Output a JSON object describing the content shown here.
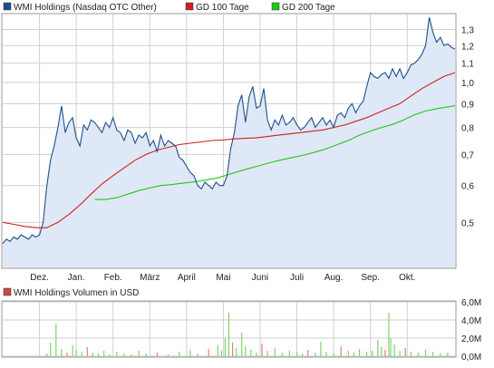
{
  "colors": {
    "price": "#1f4f8b",
    "price_fill": "#dfe8f6",
    "gd100": "#d11f1f",
    "gd200": "#22c71a",
    "volume_legend": "#c84a4a",
    "volume_bar": "#7fd46b",
    "volume_bar_neg": "#e08080",
    "grid": "#d0d0d0",
    "frame": "#999999"
  },
  "chart_data": [
    {
      "type": "line",
      "legend": [
        {
          "key": "price",
          "label": "WMI Holdings (Nasdaq OTC Other)"
        },
        {
          "key": "gd100",
          "label": "GD 100 Tage"
        },
        {
          "key": "gd200",
          "label": "GD 200 Tage"
        }
      ],
      "x_tick_labels": [
        "Dez.",
        "Jan.",
        "Feb.",
        "März",
        "April",
        "Mai",
        "Juni",
        "Juli",
        "Aug.",
        "Sep.",
        "Okt."
      ],
      "x_range": [
        0,
        12.3
      ],
      "x_ticks": [
        1,
        2,
        3,
        4,
        5,
        6,
        7,
        8,
        9,
        10,
        11
      ],
      "y_ticks": [
        0.5,
        0.6,
        0.7,
        0.8,
        0.9,
        1.0,
        1.1,
        1.2,
        1.3
      ],
      "y_tick_labels": [
        "0,5",
        "0,6",
        "0,7",
        "0,8",
        "0,9",
        "1,0",
        "1,1",
        "1,2",
        "1,3"
      ],
      "y_scale": "log",
      "ylim": [
        0.4,
        1.4
      ],
      "grid": true,
      "legend_placement": "top-left",
      "series": [
        {
          "name": "WMI Holdings (Nasdaq OTC Other)",
          "key": "price",
          "x": [
            0,
            0.1,
            0.2,
            0.3,
            0.4,
            0.5,
            0.6,
            0.7,
            0.8,
            0.9,
            1.0,
            1.1,
            1.2,
            1.3,
            1.4,
            1.5,
            1.6,
            1.7,
            1.8,
            1.9,
            2.0,
            2.1,
            2.2,
            2.3,
            2.4,
            2.5,
            2.6,
            2.7,
            2.8,
            2.9,
            3.0,
            3.1,
            3.2,
            3.3,
            3.4,
            3.5,
            3.6,
            3.7,
            3.8,
            3.9,
            4.0,
            4.1,
            4.2,
            4.3,
            4.4,
            4.5,
            4.6,
            4.7,
            4.8,
            4.9,
            5.0,
            5.1,
            5.2,
            5.3,
            5.4,
            5.5,
            5.6,
            5.7,
            5.8,
            5.9,
            6.0,
            6.1,
            6.2,
            6.3,
            6.4,
            6.5,
            6.6,
            6.7,
            6.8,
            6.9,
            7.0,
            7.1,
            7.2,
            7.3,
            7.4,
            7.5,
            7.6,
            7.7,
            7.8,
            7.9,
            8.0,
            8.1,
            8.2,
            8.3,
            8.4,
            8.5,
            8.6,
            8.7,
            8.8,
            8.9,
            9.0,
            9.1,
            9.2,
            9.3,
            9.4,
            9.5,
            9.6,
            9.7,
            9.8,
            9.9,
            10.0,
            10.1,
            10.2,
            10.3,
            10.4,
            10.5,
            10.6,
            10.7,
            10.8,
            10.9,
            11.0,
            11.1,
            11.2,
            11.3,
            11.4,
            11.5,
            11.6,
            11.7,
            11.8,
            11.9,
            12.0,
            12.1,
            12.2,
            12.3
          ],
          "values": [
            0.45,
            0.46,
            0.455,
            0.465,
            0.46,
            0.47,
            0.465,
            0.46,
            0.47,
            0.465,
            0.47,
            0.5,
            0.6,
            0.68,
            0.73,
            0.8,
            0.89,
            0.78,
            0.82,
            0.84,
            0.76,
            0.73,
            0.81,
            0.79,
            0.83,
            0.82,
            0.8,
            0.78,
            0.82,
            0.8,
            0.84,
            0.79,
            0.78,
            0.75,
            0.79,
            0.78,
            0.74,
            0.77,
            0.76,
            0.78,
            0.73,
            0.75,
            0.71,
            0.77,
            0.73,
            0.75,
            0.74,
            0.73,
            0.69,
            0.68,
            0.66,
            0.64,
            0.63,
            0.6,
            0.59,
            0.61,
            0.6,
            0.59,
            0.61,
            0.6,
            0.6,
            0.63,
            0.72,
            0.78,
            0.89,
            0.94,
            0.82,
            0.93,
            0.98,
            0.88,
            0.89,
            0.97,
            0.83,
            0.79,
            0.83,
            0.81,
            0.85,
            0.81,
            0.82,
            0.84,
            0.81,
            0.79,
            0.8,
            0.82,
            0.84,
            0.8,
            0.82,
            0.84,
            0.81,
            0.83,
            0.8,
            0.85,
            0.86,
            0.84,
            0.88,
            0.9,
            0.86,
            0.89,
            0.91,
            0.98,
            1.05,
            1.03,
            1.02,
            1.04,
            1.05,
            1.02,
            1.07,
            1.03,
            1.07,
            1.02,
            1.05,
            1.09,
            1.1,
            1.12,
            1.15,
            1.2,
            1.38,
            1.28,
            1.22,
            1.25,
            1.2,
            1.21,
            1.19,
            1.18
          ]
        },
        {
          "name": "GD 100 Tage",
          "key": "gd100",
          "x": [
            0,
            0.3,
            0.6,
            0.9,
            1.2,
            1.5,
            1.8,
            2.1,
            2.4,
            2.7,
            3.0,
            3.3,
            3.6,
            3.9,
            4.2,
            4.5,
            4.8,
            5.1,
            5.4,
            5.7,
            6.0,
            6.3,
            6.6,
            6.9,
            7.2,
            7.5,
            7.8,
            8.1,
            8.4,
            8.7,
            9.0,
            9.3,
            9.6,
            9.9,
            10.2,
            10.5,
            10.8,
            11.1,
            11.4,
            11.7,
            12.0,
            12.3
          ],
          "values": [
            0.5,
            0.495,
            0.49,
            0.487,
            0.487,
            0.5,
            0.52,
            0.545,
            0.575,
            0.605,
            0.63,
            0.655,
            0.68,
            0.7,
            0.715,
            0.725,
            0.735,
            0.74,
            0.745,
            0.75,
            0.752,
            0.756,
            0.758,
            0.76,
            0.765,
            0.77,
            0.775,
            0.78,
            0.785,
            0.79,
            0.8,
            0.81,
            0.825,
            0.84,
            0.86,
            0.88,
            0.9,
            0.935,
            0.97,
            1.0,
            1.03,
            1.05
          ]
        },
        {
          "name": "GD 200 Tage",
          "key": "gd200",
          "x": [
            2.5,
            2.8,
            3.1,
            3.4,
            3.7,
            4.0,
            4.3,
            4.6,
            4.9,
            5.2,
            5.5,
            5.8,
            6.1,
            6.4,
            6.7,
            7.0,
            7.3,
            7.6,
            7.9,
            8.2,
            8.5,
            8.8,
            9.1,
            9.4,
            9.7,
            10.0,
            10.3,
            10.6,
            10.9,
            11.2,
            11.5,
            11.8,
            12.1,
            12.3
          ],
          "values": [
            0.56,
            0.56,
            0.565,
            0.575,
            0.585,
            0.593,
            0.6,
            0.603,
            0.607,
            0.611,
            0.616,
            0.622,
            0.632,
            0.643,
            0.653,
            0.663,
            0.673,
            0.682,
            0.69,
            0.698,
            0.708,
            0.72,
            0.735,
            0.75,
            0.77,
            0.786,
            0.8,
            0.812,
            0.83,
            0.852,
            0.868,
            0.878,
            0.886,
            0.891
          ]
        }
      ]
    },
    {
      "type": "bar",
      "legend": [
        {
          "key": "volume",
          "label": "WMI Holdings Volumen in USD"
        }
      ],
      "y_ticks": [
        0,
        2,
        4,
        6
      ],
      "y_tick_labels": [
        "0,0M",
        "2,0M",
        "4,0M",
        "6,0M"
      ],
      "ylim": [
        0,
        6
      ],
      "grid": true,
      "series": [
        {
          "name": "WMI Holdings Volumen in USD",
          "key": "volume",
          "x": [
            1.2,
            1.3,
            1.45,
            1.6,
            1.75,
            1.9,
            2.0,
            2.15,
            2.3,
            2.45,
            2.6,
            2.75,
            2.9,
            3.1,
            3.3,
            3.5,
            3.7,
            3.9,
            4.2,
            4.5,
            4.8,
            5.1,
            5.3,
            5.6,
            5.85,
            5.95,
            6.05,
            6.15,
            6.25,
            6.35,
            6.5,
            6.6,
            6.75,
            6.9,
            7.05,
            7.2,
            7.4,
            7.6,
            7.8,
            8.0,
            8.15,
            8.3,
            8.5,
            8.65,
            8.8,
            9.0,
            9.2,
            9.4,
            9.55,
            9.7,
            9.9,
            10.05,
            10.2,
            10.3,
            10.4,
            10.5,
            10.55,
            10.65,
            10.8,
            10.95,
            11.1,
            11.3,
            11.5,
            11.7,
            11.9,
            12.1
          ],
          "values": [
            0.3,
            1.5,
            3.6,
            0.8,
            0.4,
            1.2,
            0.7,
            0.5,
            1.0,
            0.4,
            0.3,
            0.6,
            0.2,
            0.5,
            0.3,
            0.2,
            0.6,
            0.3,
            0.4,
            0.2,
            0.5,
            0.7,
            0.3,
            0.8,
            1.2,
            0.6,
            2.0,
            4.8,
            1.5,
            0.9,
            2.6,
            1.1,
            0.7,
            0.4,
            1.4,
            0.6,
            0.9,
            0.4,
            0.6,
            0.5,
            0.3,
            0.7,
            0.4,
            1.6,
            0.5,
            0.3,
            1.1,
            0.6,
            0.4,
            0.8,
            0.5,
            0.6,
            1.8,
            1.0,
            0.7,
            4.8,
            2.0,
            1.3,
            0.6,
            0.9,
            0.5,
            0.4,
            0.7,
            0.5,
            0.3,
            0.4
          ],
          "negative_days": [
            1.75,
            2.3,
            4.2,
            5.6,
            6.25,
            7.05,
            8.3,
            9.2,
            10.4,
            10.95
          ]
        }
      ]
    }
  ]
}
